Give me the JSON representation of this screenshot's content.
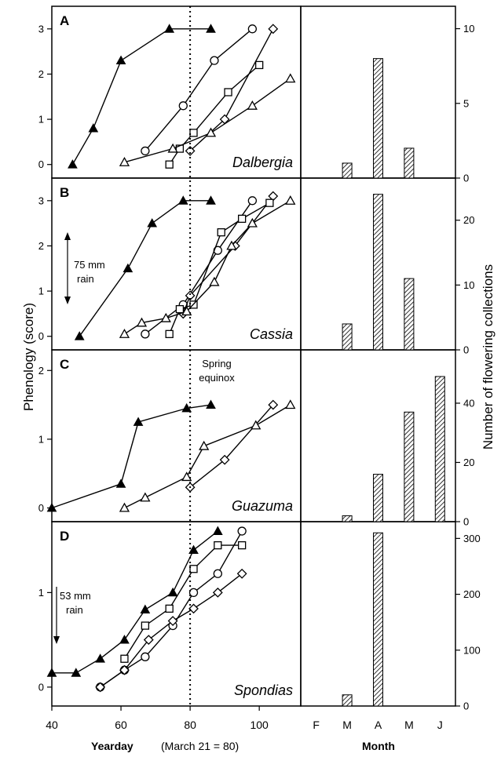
{
  "chart_data": [
    {
      "type": "line",
      "panel": "A",
      "genus": "Dalbergia",
      "ylim": [
        -0.3,
        3.5
      ],
      "yticks": [
        0,
        1,
        2,
        3
      ],
      "series": [
        {
          "marker": "filled-triangle",
          "x": [
            46,
            52,
            60,
            74,
            86
          ],
          "y": [
            0,
            0.8,
            2.3,
            3.0,
            3.0
          ]
        },
        {
          "marker": "circle",
          "x": [
            67,
            78,
            87,
            98
          ],
          "y": [
            0.3,
            1.3,
            2.3,
            3.0
          ]
        },
        {
          "marker": "diamond",
          "x": [
            80,
            90,
            104
          ],
          "y": [
            0.3,
            1.0,
            3.0
          ]
        },
        {
          "marker": "square",
          "x": [
            74,
            77,
            81,
            91,
            100
          ],
          "y": [
            0,
            0.35,
            0.7,
            1.6,
            2.2
          ]
        },
        {
          "marker": "triangle",
          "x": [
            61,
            75,
            86,
            98,
            109
          ],
          "y": [
            0.05,
            0.35,
            0.7,
            1.3,
            1.9
          ]
        }
      ]
    },
    {
      "type": "line",
      "panel": "B",
      "genus": "Cassia",
      "ylim": [
        -0.3,
        3.5
      ],
      "yticks": [
        0,
        1,
        2,
        3
      ],
      "annotation": {
        "lines": [
          "75 mm",
          "rain"
        ]
      },
      "series": [
        {
          "marker": "filled-triangle",
          "x": [
            48,
            62,
            69,
            78,
            86
          ],
          "y": [
            0,
            1.5,
            2.5,
            3.0,
            3.0
          ]
        },
        {
          "marker": "circle",
          "x": [
            67,
            78,
            88,
            98
          ],
          "y": [
            0.05,
            0.7,
            1.9,
            3.0
          ]
        },
        {
          "marker": "diamond",
          "x": [
            78,
            80,
            93,
            104
          ],
          "y": [
            0.5,
            0.9,
            2.0,
            3.1
          ]
        },
        {
          "marker": "square",
          "x": [
            74,
            77,
            81,
            89,
            95,
            103
          ],
          "y": [
            0.05,
            0.6,
            0.7,
            2.3,
            2.6,
            2.95
          ]
        },
        {
          "marker": "triangle",
          "x": [
            61,
            66,
            73,
            79,
            87,
            92,
            98,
            109
          ],
          "y": [
            0.05,
            0.3,
            0.4,
            0.55,
            1.2,
            2.0,
            2.5,
            3.0
          ]
        }
      ]
    },
    {
      "type": "line",
      "panel": "C",
      "genus": "Guazuma",
      "ylim": [
        -0.2,
        2.3
      ],
      "yticks": [
        0,
        1,
        2
      ],
      "annotation": {
        "lines": [
          "Spring",
          "equinox"
        ]
      },
      "series": [
        {
          "marker": "filled-triangle",
          "x": [
            40,
            60,
            65,
            79,
            86
          ],
          "y": [
            0,
            0.35,
            1.25,
            1.45,
            1.5
          ]
        },
        {
          "marker": "diamond",
          "x": [
            80,
            90,
            104
          ],
          "y": [
            0.3,
            0.7,
            1.5
          ]
        },
        {
          "marker": "triangle",
          "x": [
            61,
            67,
            79,
            84,
            99,
            109
          ],
          "y": [
            0,
            0.15,
            0.45,
            0.9,
            1.2,
            1.5
          ]
        }
      ]
    },
    {
      "type": "line",
      "panel": "D",
      "genus": "Spondias",
      "ylim": [
        -0.2,
        1.75
      ],
      "yticks": [
        0,
        1
      ],
      "annotation": {
        "lines": [
          "53 mm",
          "rain"
        ]
      },
      "series": [
        {
          "marker": "filled-triangle",
          "x": [
            40,
            47,
            54,
            61,
            67,
            75,
            81,
            88
          ],
          "y": [
            0.15,
            0.15,
            0.3,
            0.5,
            0.82,
            1.0,
            1.45,
            1.65
          ]
        },
        {
          "marker": "square",
          "x": [
            61,
            67,
            74,
            81,
            88,
            95
          ],
          "y": [
            0.3,
            0.65,
            0.83,
            1.25,
            1.5,
            1.5
          ]
        },
        {
          "marker": "circle",
          "x": [
            54,
            61,
            67,
            75,
            81,
            88,
            95
          ],
          "y": [
            0,
            0.18,
            0.32,
            0.65,
            1.0,
            1.2,
            1.65
          ]
        },
        {
          "marker": "diamond",
          "x": [
            54,
            61,
            68,
            75,
            81,
            88,
            95
          ],
          "y": [
            0,
            0.18,
            0.5,
            0.7,
            0.83,
            1.0,
            1.2
          ]
        }
      ]
    }
  ],
  "bar_data": [
    {
      "type": "bar",
      "panel": "A",
      "categories": [
        "F",
        "M",
        "A",
        "M",
        "J"
      ],
      "values": [
        0,
        1,
        8,
        2,
        0
      ],
      "ylim": [
        0,
        11.5
      ],
      "yticks": [
        0,
        5,
        10
      ]
    },
    {
      "type": "bar",
      "panel": "B",
      "categories": [
        "F",
        "M",
        "A",
        "M",
        "J"
      ],
      "values": [
        0,
        4,
        24,
        11,
        0
      ],
      "ylim": [
        0,
        26.5
      ],
      "yticks": [
        0,
        10,
        20
      ]
    },
    {
      "type": "bar",
      "panel": "C",
      "categories": [
        "F",
        "M",
        "A",
        "M",
        "J"
      ],
      "values": [
        0,
        2,
        16,
        37,
        49
      ],
      "ylim": [
        0,
        58
      ],
      "yticks": [
        0,
        20,
        40
      ]
    },
    {
      "type": "bar",
      "panel": "D",
      "categories": [
        "F",
        "M",
        "A",
        "M",
        "J"
      ],
      "values": [
        0,
        20,
        310,
        0,
        0
      ],
      "ylim": [
        0,
        330
      ],
      "yticks": [
        0,
        100,
        200,
        300
      ]
    }
  ],
  "axes": {
    "x": {
      "xlim": [
        40,
        112
      ],
      "ticks": [
        40,
        60,
        80,
        100
      ],
      "label": "Yearday",
      "note": "(March 21 = 80)"
    },
    "y_left_label": "Phenology (score)",
    "y_right_label": "Number of flowering collections",
    "month_label": "Month",
    "equinox_x": 80
  }
}
